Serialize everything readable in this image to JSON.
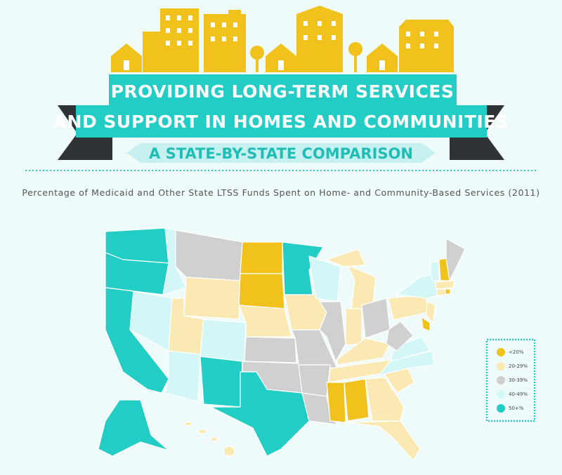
{
  "header": {
    "title_lines": [
      "PROVIDING LONG-TERM SERVICES",
      "AND SUPPORT IN HOMES AND COMMUNITIES"
    ],
    "subtitle": "A STATE-BY-STATE COMPARISON"
  },
  "map": {
    "title": "Percentage of Medicaid and Other State LTSS Funds Spent on Home- and Community-Based Services (2011)",
    "legend": [
      {
        "label": "<20%",
        "color": "#f1c21b"
      },
      {
        "label": "20-29%",
        "color": "#fbe9b4"
      },
      {
        "label": "30-39%",
        "color": "#d0d0d0"
      },
      {
        "label": "40-49%",
        "color": "#d3f6f6"
      },
      {
        "label": "50+%",
        "color": "#22cdc5"
      }
    ]
  }
}
